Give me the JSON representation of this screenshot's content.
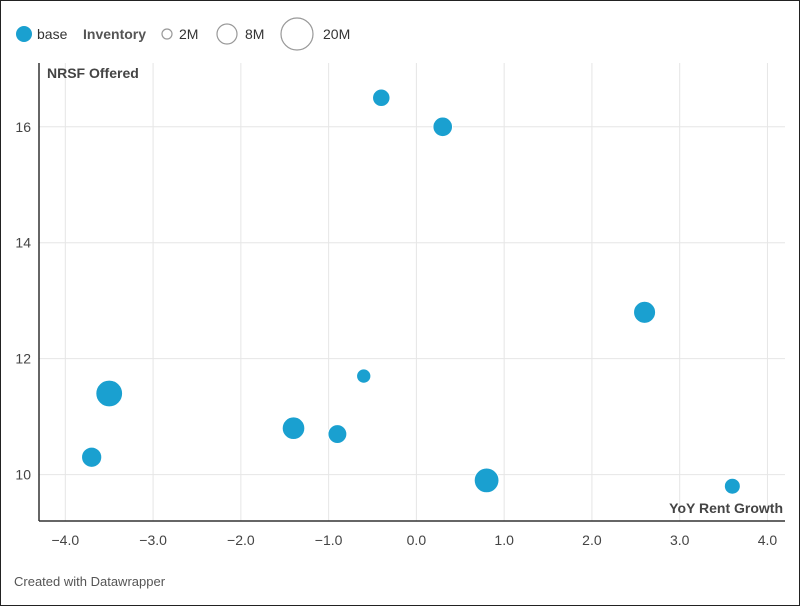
{
  "legend": {
    "series_label": "base",
    "size_title": "Inventory",
    "size_labels": [
      "2M",
      "8M",
      "20M"
    ]
  },
  "footer": "Created with Datawrapper",
  "colors": {
    "bubble": "#1aa0d0",
    "grid": "#e6e6e6",
    "axis": "#333333",
    "legend_outline": "#999999"
  },
  "chart_data": {
    "type": "scatter",
    "title": "",
    "xlabel": "YoY Rent Growth",
    "ylabel": "NRSF Offered",
    "size_label": "Inventory",
    "xlim": [
      -4.3,
      4.2
    ],
    "ylim": [
      9.2,
      17.1
    ],
    "xticks": [
      -4.0,
      -3.0,
      -2.0,
      -1.0,
      0.0,
      1.0,
      2.0,
      3.0,
      4.0
    ],
    "xtick_labels": [
      "−4.0",
      "−3.0",
      "−2.0",
      "−1.0",
      "0.0",
      "1.0",
      "2.0",
      "3.0",
      "4.0"
    ],
    "yticks": [
      10,
      12,
      14,
      16
    ],
    "ytick_labels": [
      "10",
      "12",
      "14",
      "16"
    ],
    "grid": true,
    "legend_position": "top-left",
    "legend_size_values": [
      2,
      8,
      20
    ],
    "series": [
      {
        "name": "base",
        "points": [
          {
            "x": -3.7,
            "y": 10.3,
            "size": 8
          },
          {
            "x": -3.5,
            "y": 11.4,
            "size": 14
          },
          {
            "x": -1.4,
            "y": 10.8,
            "size": 10
          },
          {
            "x": -0.9,
            "y": 10.7,
            "size": 7
          },
          {
            "x": -0.6,
            "y": 11.7,
            "size": 4
          },
          {
            "x": -0.4,
            "y": 16.5,
            "size": 6
          },
          {
            "x": 0.3,
            "y": 16.0,
            "size": 7.5
          },
          {
            "x": 0.8,
            "y": 9.9,
            "size": 12
          },
          {
            "x": 2.6,
            "y": 12.8,
            "size": 9.5
          },
          {
            "x": 3.6,
            "y": 9.8,
            "size": 5
          }
        ]
      }
    ]
  }
}
